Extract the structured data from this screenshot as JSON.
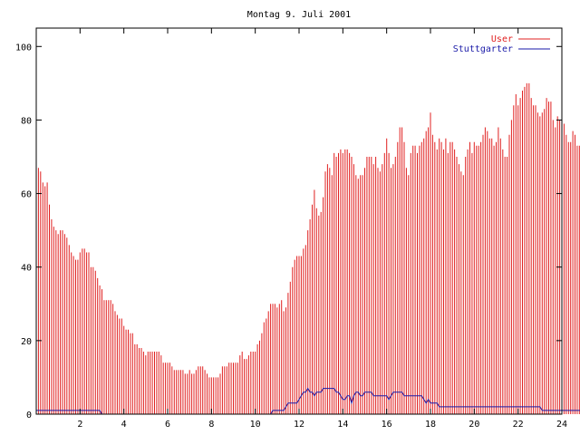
{
  "chart_data": {
    "type": "bar",
    "title": "Montag 9. Juli 2001",
    "xlabel": "",
    "ylabel": "",
    "xlim": [
      0,
      24
    ],
    "ylim": [
      0,
      105
    ],
    "x_ticks": [
      2,
      4,
      6,
      8,
      10,
      12,
      14,
      16,
      18,
      20,
      22,
      24
    ],
    "y_ticks": [
      0,
      20,
      40,
      60,
      80,
      100
    ],
    "legend_position": "top-right",
    "grid": false,
    "x_step": 0.1,
    "x_start": 0,
    "series": [
      {
        "name": "User",
        "style": "impulses",
        "color": "#e02020",
        "values": [
          72,
          67,
          66,
          63,
          62,
          63,
          57,
          53,
          51,
          50,
          49,
          50,
          50,
          49,
          48,
          46,
          44,
          43,
          42,
          42,
          44,
          45,
          45,
          44,
          44,
          40,
          40,
          39,
          37,
          35,
          34,
          31,
          31,
          31,
          31,
          30,
          28,
          27,
          26,
          26,
          24,
          23,
          23,
          22,
          22,
          19,
          19,
          18,
          18,
          17,
          16,
          17,
          17,
          17,
          17,
          17,
          17,
          16,
          14,
          14,
          14,
          14,
          13,
          12,
          12,
          12,
          12,
          12,
          11,
          11,
          12,
          11,
          11,
          12,
          13,
          13,
          13,
          12,
          11,
          10,
          10,
          10,
          10,
          10,
          11,
          13,
          13,
          13,
          14,
          14,
          14,
          14,
          14,
          16,
          17,
          15,
          15,
          16,
          17,
          17,
          17,
          19,
          20,
          22,
          25,
          26,
          28,
          30,
          30,
          30,
          29,
          30,
          31,
          28,
          29,
          33,
          36,
          40,
          42,
          43,
          43,
          43,
          45,
          46,
          50,
          53,
          57,
          61,
          56,
          54,
          55,
          59,
          66,
          68,
          67,
          65,
          71,
          70,
          71,
          72,
          71,
          72,
          72,
          71,
          70,
          68,
          65,
          64,
          65,
          65,
          67,
          70,
          70,
          70,
          68,
          70,
          67,
          66,
          68,
          71,
          75,
          71,
          67,
          68,
          70,
          74,
          78,
          78,
          74,
          67,
          65,
          71,
          73,
          73,
          71,
          73,
          74,
          75,
          77,
          78,
          82,
          76,
          74,
          72,
          75,
          74,
          72,
          75,
          71,
          74,
          74,
          72,
          70,
          68,
          66,
          65,
          70,
          72,
          74,
          71,
          74,
          73,
          73,
          74,
          76,
          78,
          77,
          75,
          75,
          73,
          74,
          78,
          75,
          72,
          70,
          70,
          76,
          80,
          84,
          87,
          84,
          86,
          88,
          89,
          90,
          90,
          86,
          84,
          84,
          82,
          81,
          82,
          83,
          86,
          85,
          85,
          80,
          78,
          81,
          80,
          80,
          79,
          76,
          74,
          74,
          77,
          76,
          73,
          73,
          72,
          72,
          73
        ]
      },
      {
        "name": "Stuttgarter",
        "style": "line",
        "color": "#1a1aa8",
        "values": [
          1,
          1,
          1,
          1,
          1,
          1,
          1,
          1,
          1,
          1,
          1,
          1,
          1,
          1,
          1,
          1,
          1,
          1,
          1,
          1,
          1,
          1,
          1,
          1,
          1,
          1,
          1,
          1,
          1,
          1,
          0,
          0,
          0,
          0,
          0,
          0,
          0,
          0,
          0,
          0,
          0,
          0,
          0,
          0,
          0,
          0,
          0,
          0,
          0,
          0,
          0,
          0,
          0,
          0,
          0,
          0,
          0,
          0,
          0,
          0,
          0,
          0,
          0,
          0,
          0,
          0,
          0,
          0,
          0,
          0,
          0,
          0,
          0,
          0,
          0,
          0,
          0,
          0,
          0,
          0,
          0,
          0,
          0,
          0,
          0,
          0,
          0,
          0,
          0,
          0,
          0,
          0,
          0,
          0,
          0,
          0,
          0,
          0,
          0,
          0,
          0,
          0,
          0,
          0,
          0,
          0,
          0,
          0,
          1,
          1,
          1,
          1,
          1,
          1,
          2,
          3,
          3,
          3,
          3,
          3,
          4,
          5,
          6,
          6,
          7,
          6,
          6,
          5,
          6,
          6,
          6,
          7,
          7,
          7,
          7,
          7,
          7,
          6,
          6,
          5,
          4,
          4,
          5,
          5,
          3,
          5,
          6,
          6,
          5,
          5,
          6,
          6,
          6,
          6,
          5,
          5,
          5,
          5,
          5,
          5,
          5,
          4,
          5,
          6,
          6,
          6,
          6,
          6,
          5,
          5,
          5,
          5,
          5,
          5,
          5,
          5,
          5,
          4,
          3,
          4,
          3,
          3,
          3,
          3,
          2,
          2,
          2,
          2,
          2,
          2,
          2,
          2,
          2,
          2,
          2,
          2,
          2,
          2,
          2,
          2,
          2,
          2,
          2,
          2,
          2,
          2,
          2,
          2,
          2,
          2,
          2,
          2,
          2,
          2,
          2,
          2,
          2,
          2,
          2,
          2,
          2,
          2,
          2,
          2,
          2,
          2,
          2,
          2,
          2,
          2,
          2,
          1,
          1,
          1,
          1,
          1,
          1,
          1,
          1,
          1,
          1,
          1,
          1,
          1,
          1,
          1,
          1,
          1,
          1,
          1,
          1,
          1,
          1,
          1,
          1
        ]
      }
    ]
  }
}
